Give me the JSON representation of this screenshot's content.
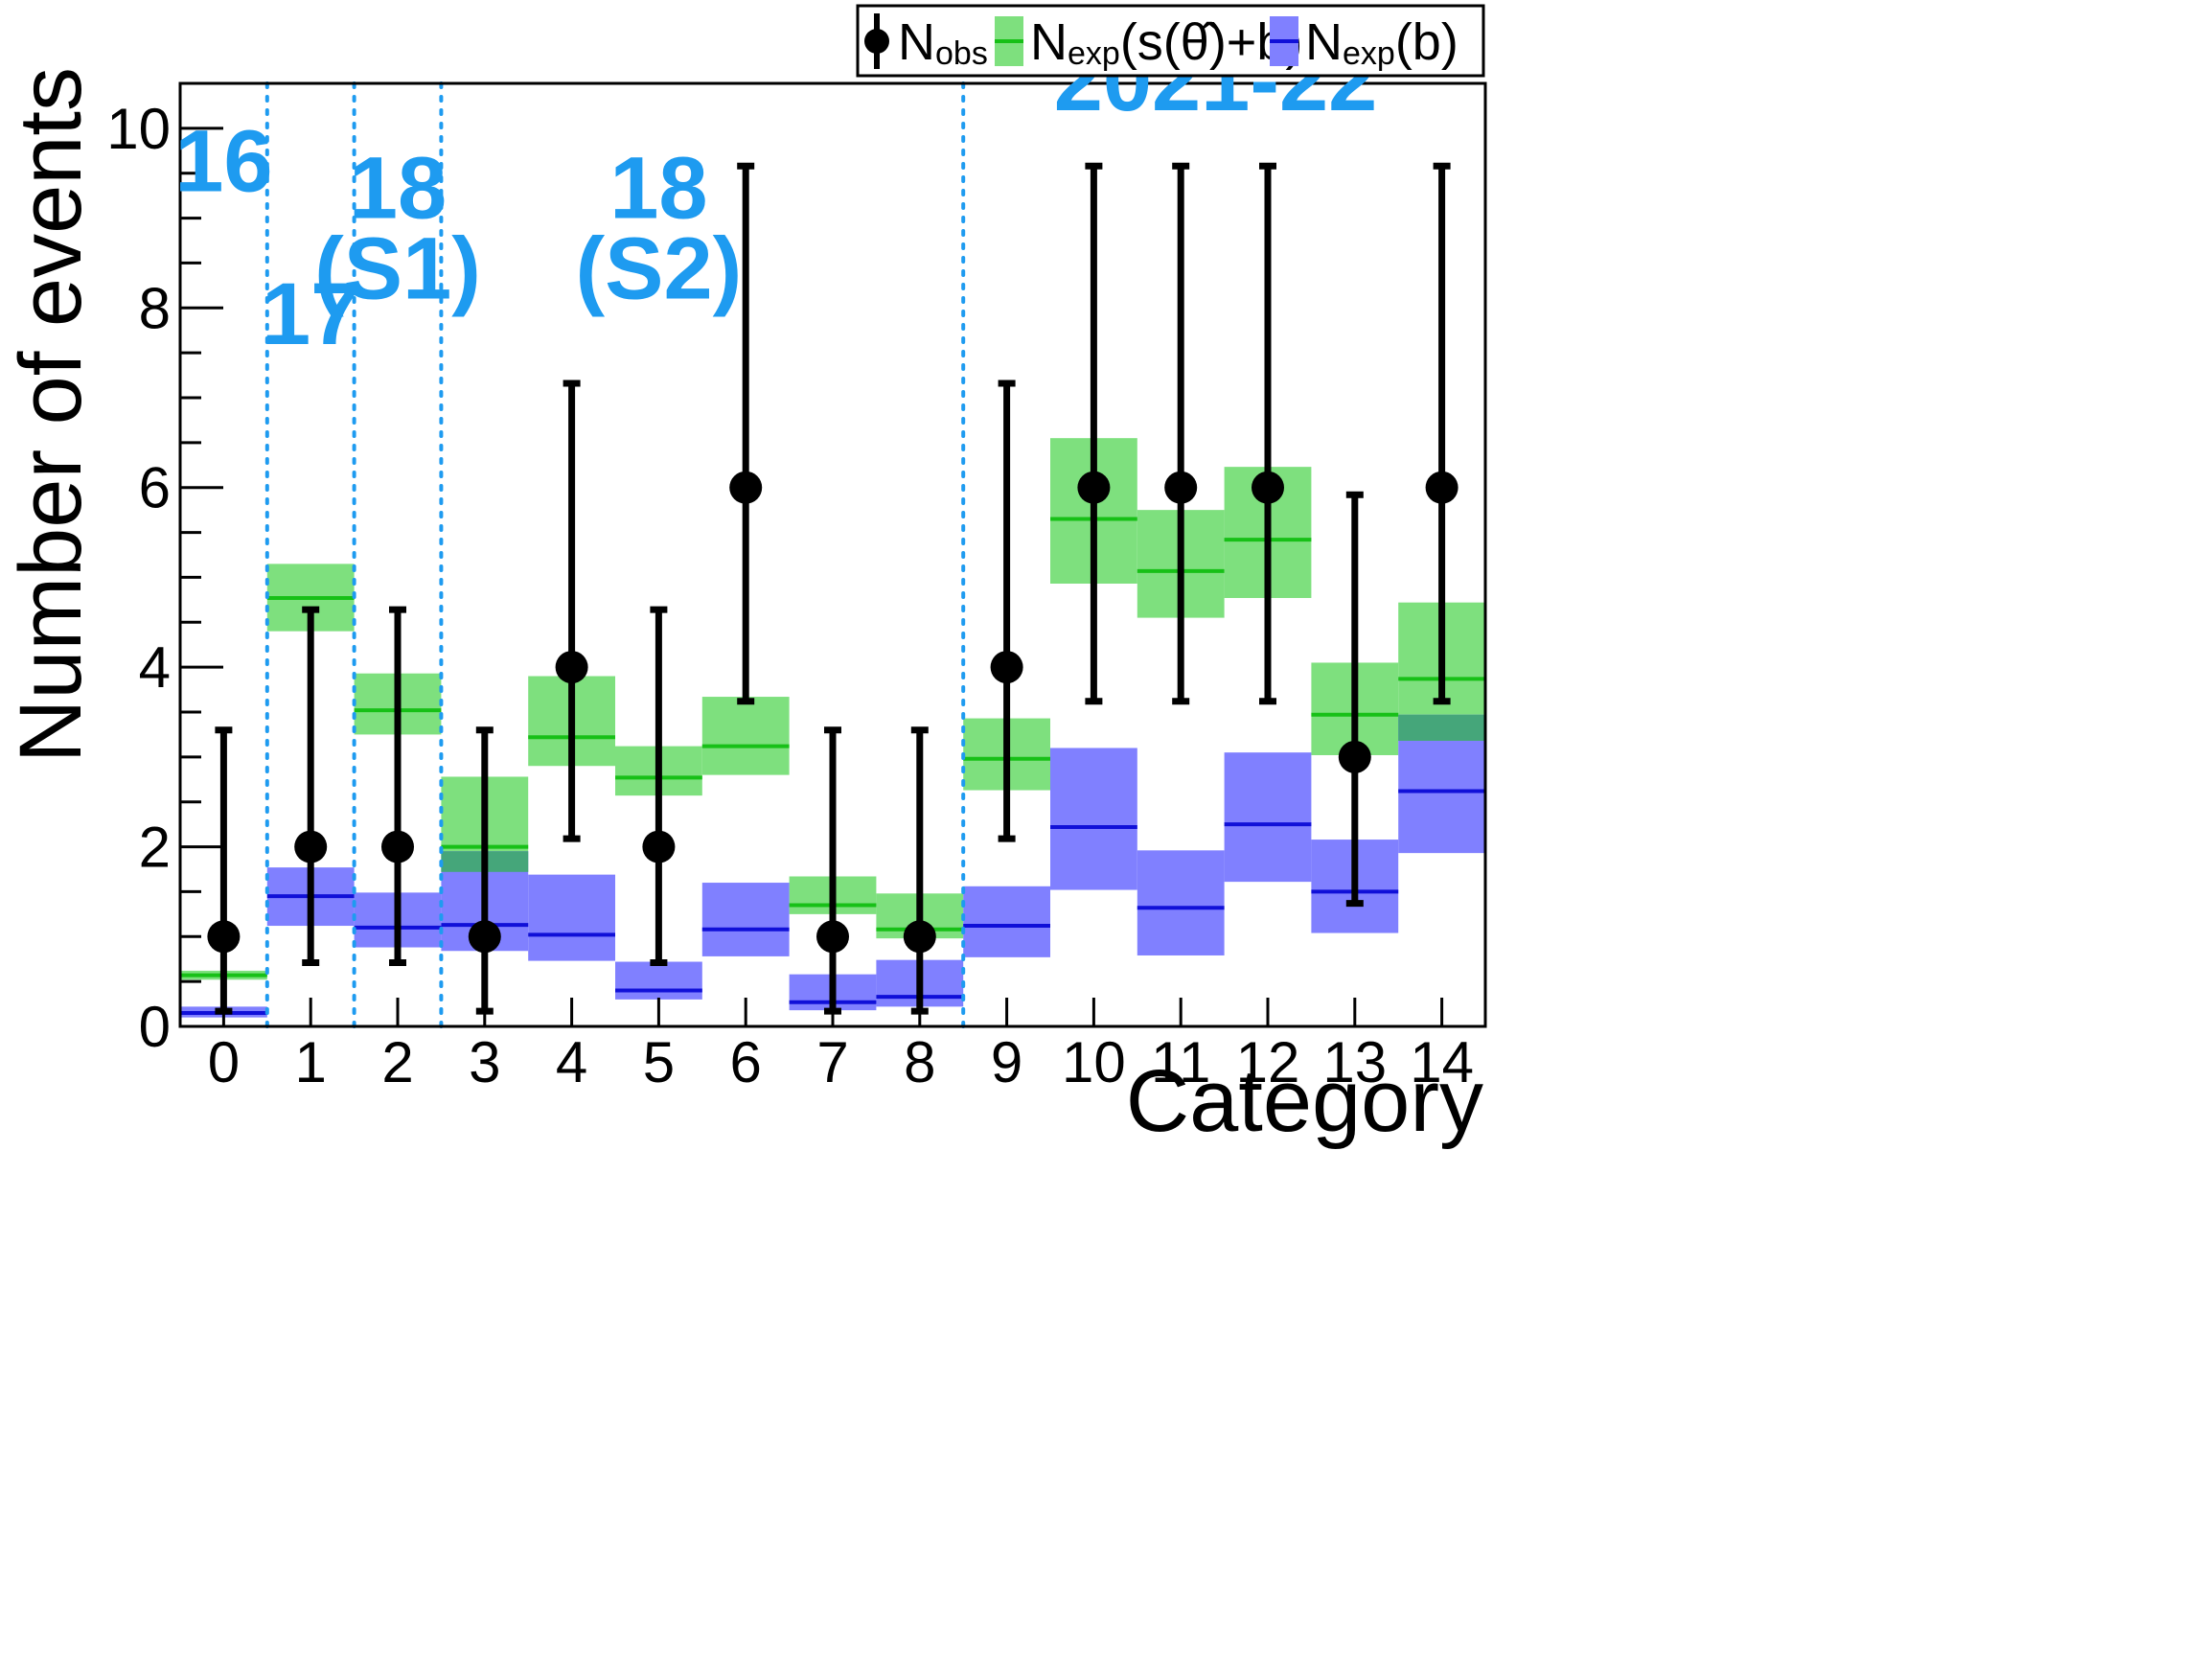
{
  "chart_data": {
    "type": "bar",
    "xlabel": "Category",
    "ylabel": "Number of events",
    "ylim": [
      0,
      10.5
    ],
    "xlim": [
      -0.5,
      14.5
    ],
    "categories": [
      "0",
      "1",
      "2",
      "3",
      "4",
      "5",
      "6",
      "7",
      "8",
      "9",
      "10",
      "11",
      "12",
      "13",
      "14"
    ],
    "y_ticks": [
      0,
      2,
      4,
      6,
      8,
      10
    ],
    "grid": false,
    "legend": {
      "position": "top-right",
      "entries": [
        {
          "key": "obs",
          "main": "N",
          "sub": "obs",
          "tail": ""
        },
        {
          "key": "sb",
          "main": "N",
          "sub": "exp",
          "tail": "(s(θ̂)+b)"
        },
        {
          "key": "b",
          "main": "N",
          "sub": "exp",
          "tail": "(b)"
        }
      ]
    },
    "colors": {
      "obs": "#000000",
      "sb_fill": "#7ee07e",
      "sb_line": "#17c017",
      "b_fill": "#8080ff",
      "b_line": "#1010d8",
      "overlap_fill": "#45a67a",
      "period_text": "#1e9bf0"
    },
    "periods": [
      {
        "label_lines": [
          "16"
        ],
        "range": [
          -0.5,
          0.5
        ],
        "label_x": 0,
        "label_y": 9.3
      },
      {
        "label_lines": [
          "17"
        ],
        "range": [
          0.5,
          1.5
        ],
        "label_x": 1,
        "label_y": 7.6
      },
      {
        "label_lines": [
          "18",
          "(S1)"
        ],
        "range": [
          1.5,
          2.5
        ],
        "label_x": 2,
        "label_y": 9.0
      },
      {
        "label_lines": [
          "18",
          "(S2)"
        ],
        "range": [
          2.5,
          8.5
        ],
        "label_x": 5,
        "label_y": 9.0
      },
      {
        "label_lines": [
          "2021-22"
        ],
        "range": [
          8.5,
          14.5
        ],
        "label_x": 11.4,
        "label_y": 10.2
      }
    ],
    "period_boundaries": [
      0.5,
      1.5,
      2.5,
      8.5
    ],
    "series": [
      {
        "key": "obs",
        "name": "Nobs",
        "values": [
          1,
          2,
          2,
          1,
          4,
          2,
          6,
          1,
          1,
          4,
          6,
          6,
          6,
          3,
          6
        ],
        "err_low": [
          0.83,
          1.29,
          1.29,
          0.83,
          1.91,
          1.29,
          2.38,
          0.83,
          0.83,
          1.91,
          2.38,
          2.38,
          2.38,
          1.63,
          2.38
        ],
        "err_high": [
          2.3,
          2.64,
          2.64,
          2.3,
          3.16,
          2.64,
          3.58,
          2.3,
          2.3,
          3.16,
          3.58,
          3.58,
          3.58,
          2.92,
          3.58
        ]
      },
      {
        "key": "sb",
        "name": "Nexp(s(θ̂)+b)",
        "values": [
          0.57,
          4.77,
          3.52,
          2.0,
          3.22,
          2.77,
          3.12,
          1.35,
          1.08,
          2.98,
          5.65,
          5.07,
          5.42,
          3.47,
          3.87
        ],
        "band_low": [
          0.52,
          4.4,
          3.25,
          1.72,
          2.9,
          2.57,
          2.8,
          1.25,
          0.98,
          2.63,
          4.93,
          4.55,
          4.77,
          3.02,
          3.18
        ],
        "band_high": [
          0.62,
          5.15,
          3.93,
          2.78,
          3.9,
          3.12,
          3.67,
          1.67,
          1.48,
          3.43,
          6.55,
          5.75,
          6.23,
          4.05,
          4.72
        ]
      },
      {
        "key": "b",
        "name": "Nexp(b)",
        "values": [
          0.15,
          1.45,
          1.1,
          1.13,
          1.02,
          0.4,
          1.08,
          0.27,
          0.33,
          1.12,
          2.22,
          1.32,
          2.25,
          1.5,
          2.62
        ],
        "band_low": [
          0.1,
          1.12,
          0.88,
          0.84,
          0.73,
          0.3,
          0.78,
          0.18,
          0.22,
          0.77,
          1.52,
          0.79,
          1.61,
          1.04,
          1.93
        ],
        "band_high": [
          0.22,
          1.77,
          1.49,
          1.95,
          1.69,
          0.72,
          1.6,
          0.58,
          0.74,
          1.56,
          3.1,
          1.96,
          3.05,
          2.08,
          3.47
        ]
      }
    ]
  }
}
